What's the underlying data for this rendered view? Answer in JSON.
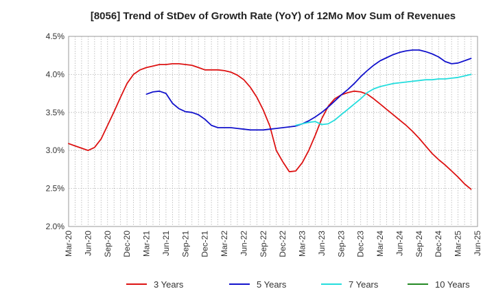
{
  "chart_data": {
    "type": "line",
    "title": "[8056]  Trend of StDev of Growth Rate (YoY) of 12Mo Mov Sum of Revenues",
    "xlabel": "",
    "ylabel": "",
    "ylim": [
      0.02,
      0.045
    ],
    "y_ticks": [
      "2.0%",
      "2.5%",
      "3.0%",
      "3.5%",
      "4.0%",
      "4.5%"
    ],
    "x_ticks": [
      "Mar-20",
      "Jun-20",
      "Sep-20",
      "Dec-20",
      "Mar-21",
      "Jun-21",
      "Sep-21",
      "Dec-21",
      "Mar-22",
      "Jun-22",
      "Sep-22",
      "Dec-22",
      "Mar-23",
      "Jun-23",
      "Sep-23",
      "Dec-23",
      "Mar-24",
      "Jun-24",
      "Sep-24",
      "Dec-24",
      "Mar-25",
      "Jun-25"
    ],
    "grid": true,
    "legend_position": "bottom",
    "series": [
      {
        "name": "3 Years",
        "color": "#dd1111",
        "values": [
          0.0309,
          0.0306,
          0.0303,
          0.03,
          0.0304,
          0.0315,
          0.0333,
          0.0351,
          0.037,
          0.0388,
          0.04,
          0.0406,
          0.0409,
          0.0411,
          0.0413,
          0.0413,
          0.0414,
          0.0414,
          0.0413,
          0.0412,
          0.0409,
          0.0406,
          0.0406,
          0.0406,
          0.0405,
          0.0403,
          0.0399,
          0.0393,
          0.0383,
          0.037,
          0.0353,
          0.0332,
          0.03,
          0.0285,
          0.0272,
          0.0273,
          0.0284,
          0.03,
          0.032,
          0.0342,
          0.0358,
          0.0368,
          0.0373,
          0.0376,
          0.0378,
          0.0377,
          0.0374,
          0.0368,
          0.0361,
          0.0354,
          0.0347,
          0.034,
          0.0333,
          0.0325,
          0.0316,
          0.0306,
          0.0296,
          0.0288,
          0.0281,
          0.0273,
          0.0265,
          0.0256,
          0.0249
        ]
      },
      {
        "name": "5 Years",
        "color": "#1111cc",
        "values": [
          null,
          null,
          null,
          null,
          null,
          null,
          null,
          null,
          null,
          null,
          null,
          null,
          0.0374,
          0.0377,
          0.0378,
          0.0375,
          0.0362,
          0.0355,
          0.0351,
          0.035,
          0.0347,
          0.0341,
          0.0333,
          0.033,
          0.033,
          0.033,
          0.0329,
          0.0328,
          0.0327,
          0.0327,
          0.0327,
          0.0328,
          0.0329,
          0.033,
          0.0331,
          0.0332,
          0.0335,
          0.0339,
          0.0344,
          0.035,
          0.0357,
          0.0365,
          0.0373,
          0.038,
          0.0388,
          0.0397,
          0.0405,
          0.0412,
          0.0418,
          0.0422,
          0.0426,
          0.0429,
          0.0431,
          0.0432,
          0.0432,
          0.043,
          0.0427,
          0.0423,
          0.0417,
          0.0414,
          0.0415,
          0.0418,
          0.0421
        ]
      },
      {
        "name": "7 Years",
        "color": "#22dddd",
        "values": [
          null,
          null,
          null,
          null,
          null,
          null,
          null,
          null,
          null,
          null,
          null,
          null,
          null,
          null,
          null,
          null,
          null,
          null,
          null,
          null,
          null,
          null,
          null,
          null,
          null,
          null,
          null,
          null,
          null,
          null,
          null,
          null,
          null,
          null,
          null,
          0.0333,
          0.0335,
          0.0337,
          0.0338,
          0.0334,
          0.0335,
          0.034,
          0.0347,
          0.0354,
          0.0361,
          0.0368,
          0.0376,
          0.0381,
          0.0384,
          0.0386,
          0.0388,
          0.0389,
          0.039,
          0.0391,
          0.0392,
          0.0393,
          0.0393,
          0.0394,
          0.0394,
          0.0395,
          0.0396,
          0.0398,
          0.04
        ]
      },
      {
        "name": "10 Years",
        "color": "#228822",
        "values": []
      }
    ]
  }
}
